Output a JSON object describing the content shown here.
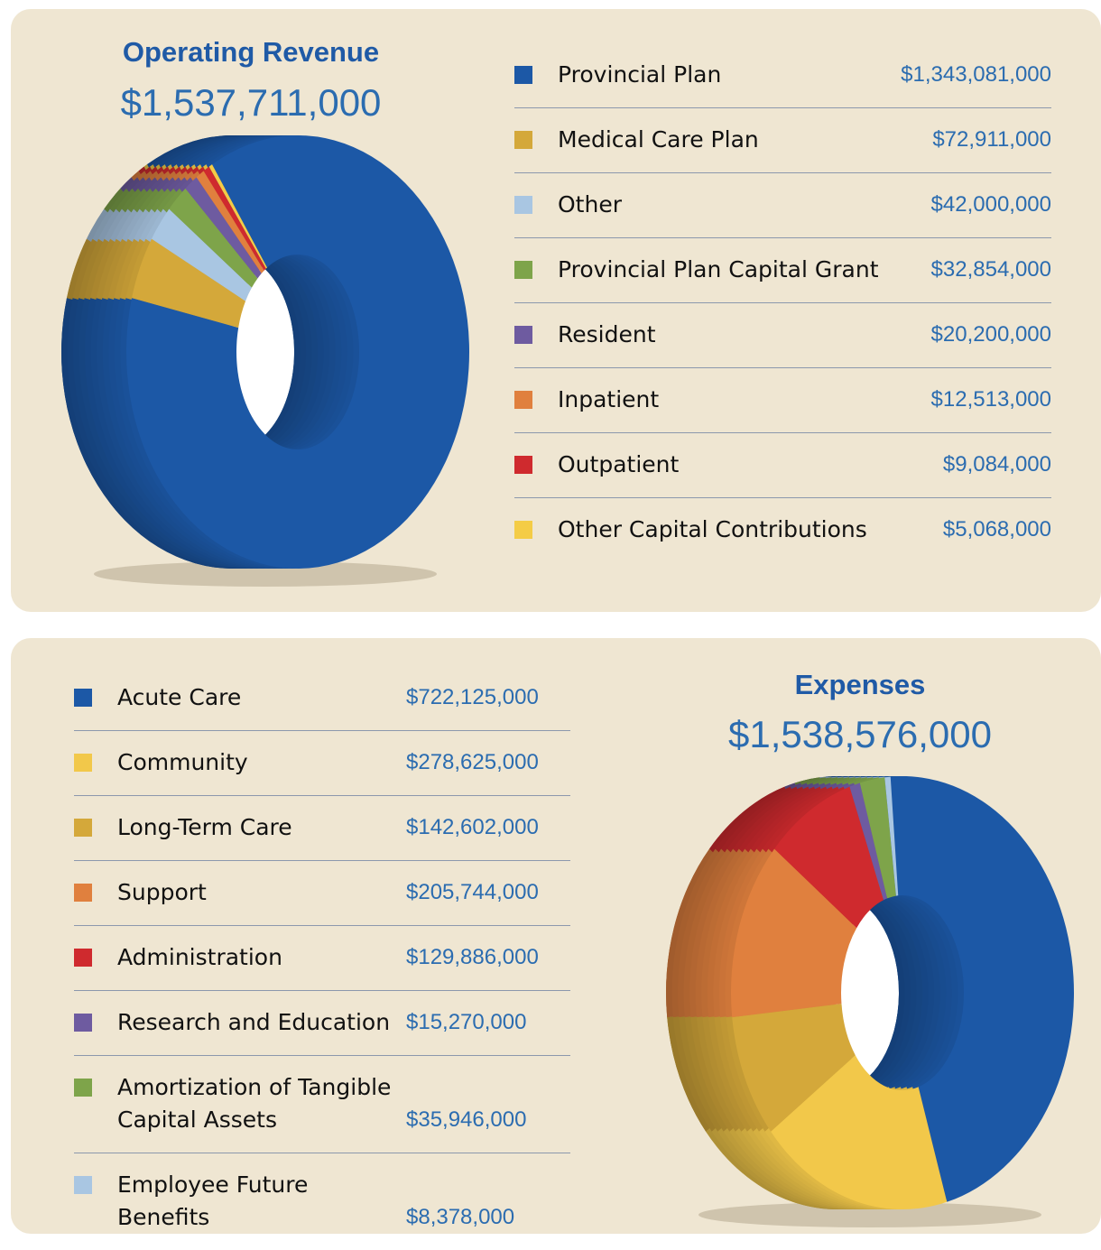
{
  "chart_data": [
    {
      "type": "donut",
      "title": "Operating Revenue",
      "subtitle": "$1,537,711,000",
      "categories": [
        "Provincial Plan",
        "Medical Care Plan",
        "Other",
        "Provincial Plan Capital Grant",
        "Resident",
        "Inpatient",
        "Outpatient",
        "Other Capital Contributions"
      ],
      "values": [
        1343081000,
        72911000,
        42000000,
        32854000,
        20200000,
        12513000,
        9084000,
        5068000
      ],
      "value_labels": [
        "$1,343,081,000",
        "$72,911,000",
        "$42,000,000",
        "$32,854,000",
        "$20,200,000",
        "$12,513,000",
        "$9,084,000",
        "$5,068,000"
      ],
      "colors": [
        "#1c58a6",
        "#d4a83a",
        "#a9c6e2",
        "#7ea44a",
        "#6e5ba0",
        "#e0803e",
        "#cf2a2e",
        "#f4cc46"
      ]
    },
    {
      "type": "donut",
      "title": "Expenses",
      "subtitle": "$1,538,576,000",
      "categories": [
        "Acute Care",
        "Community",
        "Long-Term Care",
        "Support",
        "Administration",
        "Research and Education",
        "Amortization of Tangible Capital Assets",
        "Employee Future Benefits"
      ],
      "values": [
        722125000,
        278625000,
        142602000,
        205744000,
        129886000,
        15270000,
        35946000,
        8378000
      ],
      "value_labels": [
        "$722,125,000",
        "$278,625,000",
        "$142,602,000",
        "$205,744,000",
        "$129,886,000",
        "$15,270,000",
        "$35,946,000",
        "$8,378,000"
      ],
      "colors": [
        "#1c58a6",
        "#f2c84a",
        "#d4a83a",
        "#e0803e",
        "#cf2a2e",
        "#6e5ba0",
        "#7ea44a",
        "#a9c6e2"
      ]
    }
  ]
}
